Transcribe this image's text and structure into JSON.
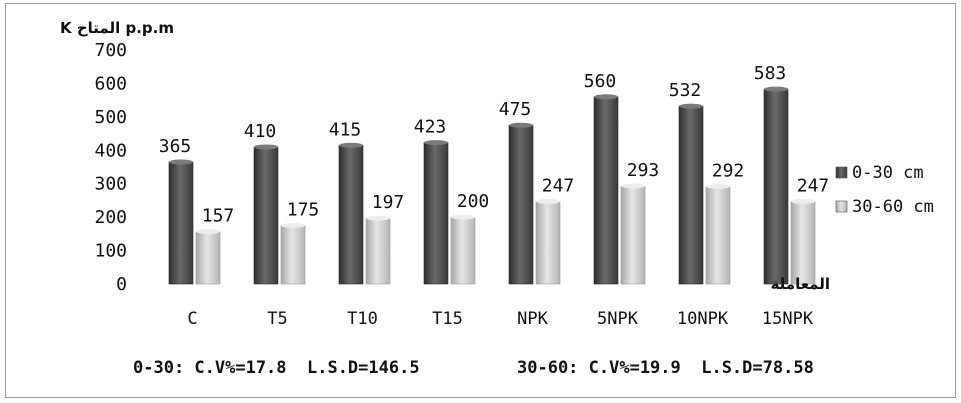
{
  "chart_data": {
    "type": "bar",
    "ylabel": "K المتاح p.p.m",
    "xlabel": "المعاملة",
    "ylim": [
      0,
      700
    ],
    "yticks": [
      0,
      100,
      200,
      300,
      400,
      500,
      600,
      700
    ],
    "grid": false,
    "legend_position": "right",
    "categories": [
      "C",
      "T5",
      "T10",
      "T15",
      "NPK",
      "5NPK",
      "10NPK",
      "15NPK"
    ],
    "series": [
      {
        "name": "0-30 cm",
        "values": [
          365,
          410,
          415,
          423,
          475,
          560,
          532,
          583
        ],
        "color": "#4a4a4a"
      },
      {
        "name": "30-60 cm",
        "values": [
          157,
          175,
          197,
          200,
          247,
          293,
          292,
          247
        ],
        "color": "#c8c8c8"
      }
    ],
    "data_labels": [
      [
        "365",
        "410",
        "415",
        "423",
        "475",
        "560",
        "532",
        "583"
      ],
      [
        "157",
        "175",
        "197",
        "200",
        "247",
        "293",
        "292",
        "247"
      ]
    ],
    "annotations": {
      "stats_0_30": "0-30: C.V%=17.8  L.S.D=146.5",
      "stats_30_60": "30-60: C.V%=19.9  L.S.D=78.58"
    }
  }
}
